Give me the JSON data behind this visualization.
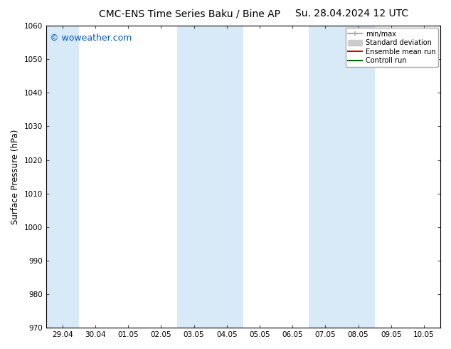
{
  "title_left": "CMC-ENS Time Series Baku / Bine AP",
  "title_right": "Su. 28.04.2024 12 UTC",
  "ylabel": "Surface Pressure (hPa)",
  "ylim": [
    970,
    1060
  ],
  "yticks": [
    970,
    980,
    990,
    1000,
    1010,
    1020,
    1030,
    1040,
    1050,
    1060
  ],
  "xtick_labels": [
    "29.04",
    "30.04",
    "01.05",
    "02.05",
    "03.05",
    "04.05",
    "05.05",
    "06.05",
    "07.05",
    "08.05",
    "09.05",
    "10.05"
  ],
  "watermark": "© woweather.com",
  "watermark_color": "#0055cc",
  "background_color": "#ffffff",
  "plot_bg_color": "#ffffff",
  "shaded_cols": [
    0,
    4,
    5,
    8,
    9
  ],
  "shaded_color": "#d8eaf7",
  "legend_items": [
    {
      "label": "min/max",
      "color": "#aaaaaa",
      "lw": 1.5
    },
    {
      "label": "Standard deviation",
      "color": "#cccccc",
      "lw": 6
    },
    {
      "label": "Ensemble mean run",
      "color": "#dd0000",
      "lw": 1.5
    },
    {
      "label": "Controll run",
      "color": "#006600",
      "lw": 1.5
    }
  ],
  "title_fontsize": 10,
  "tick_fontsize": 7.5,
  "label_fontsize": 8.5,
  "watermark_fontsize": 9,
  "legend_fontsize": 7
}
